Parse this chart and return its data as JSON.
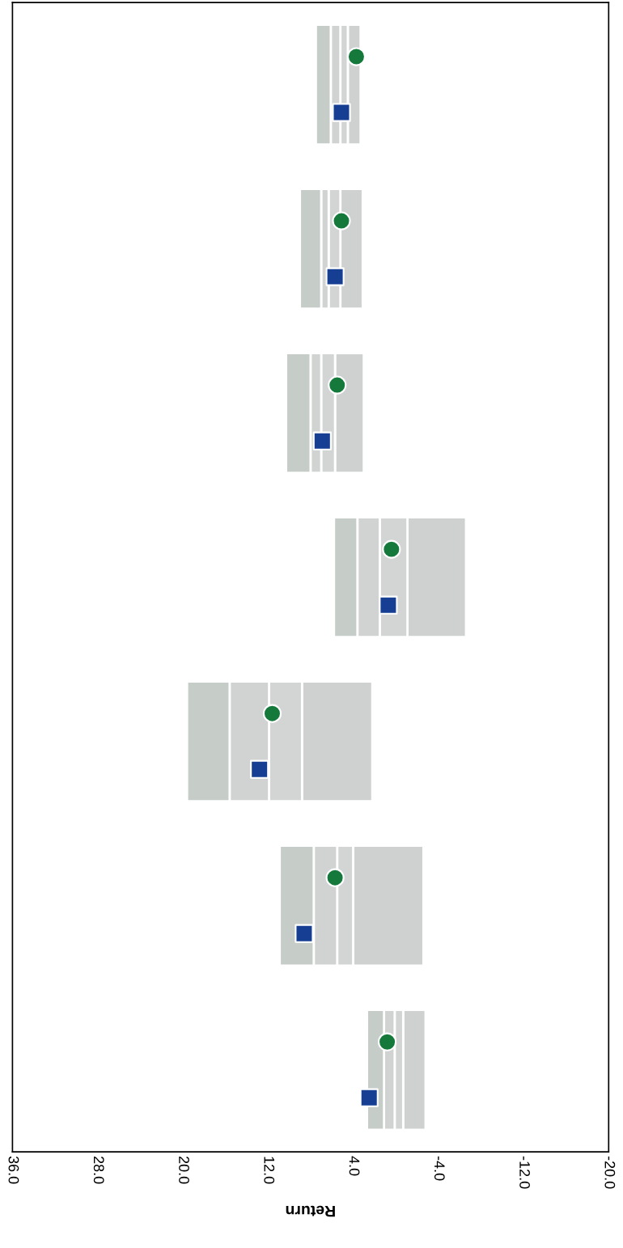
{
  "chart_data": {
    "type": "bar",
    "orientation": "horizontal",
    "xlabel": "Return",
    "categories": [
      null,
      null,
      null,
      null,
      null,
      null,
      null
    ],
    "series": [
      {
        "color": "#cfd1d0",
        "base": [
          3.3,
          3.1,
          3.0,
          -6.6,
          2.2,
          -2.6,
          -2.8
        ],
        "values": [
          1.2,
          2.1,
          2.7,
          5.5,
          6.6,
          6.6,
          2.1
        ]
      },
      {
        "color": "#d3d5d4",
        "base": [
          4.5,
          5.2,
          5.7,
          -1.1,
          8.8,
          4.0,
          -0.7
        ],
        "values": [
          0.7,
          1.1,
          1.3,
          2.6,
          3.1,
          1.5,
          0.8
        ]
      },
      {
        "color": "#d0d3d1",
        "base": [
          5.2,
          6.3,
          7.0,
          1.5,
          11.9,
          5.5,
          0.1
        ],
        "values": [
          0.9,
          0.7,
          1.0,
          2.1,
          3.7,
          2.2,
          1.0
        ]
      },
      {
        "color": "#c6cdc9",
        "base": [
          6.1,
          7.0,
          8.0,
          3.6,
          15.6,
          7.7,
          1.1
        ],
        "values": [
          1.4,
          2.0,
          2.3,
          2.2,
          4.0,
          3.2,
          1.6
        ]
      },
      {
        "type": "scatter",
        "marker": "circle",
        "color": "#14793a",
        "values": [
          3.7,
          5.1,
          5.5,
          0.4,
          11.6,
          5.7,
          0.8
        ]
      },
      {
        "type": "scatter",
        "marker": "square",
        "color": "#163f93",
        "values": [
          5.1,
          5.7,
          6.9,
          0.7,
          12.8,
          8.6,
          2.5
        ]
      }
    ],
    "xlim": [
      36,
      -20
    ],
    "xticks": [
      {
        "value": 36,
        "label": "36.0"
      },
      {
        "value": 28,
        "label": "28.0"
      },
      {
        "value": 20,
        "label": "20.0"
      },
      {
        "value": 12,
        "label": "12.0"
      },
      {
        "value": 4,
        "label": "4.0"
      },
      {
        "value": -4,
        "label": "-4.0"
      },
      {
        "value": -12,
        "label": "-12.0"
      },
      {
        "value": -20,
        "label": "-20.0"
      }
    ],
    "tick_labels": "x",
    "grid": false,
    "legend": false
  }
}
